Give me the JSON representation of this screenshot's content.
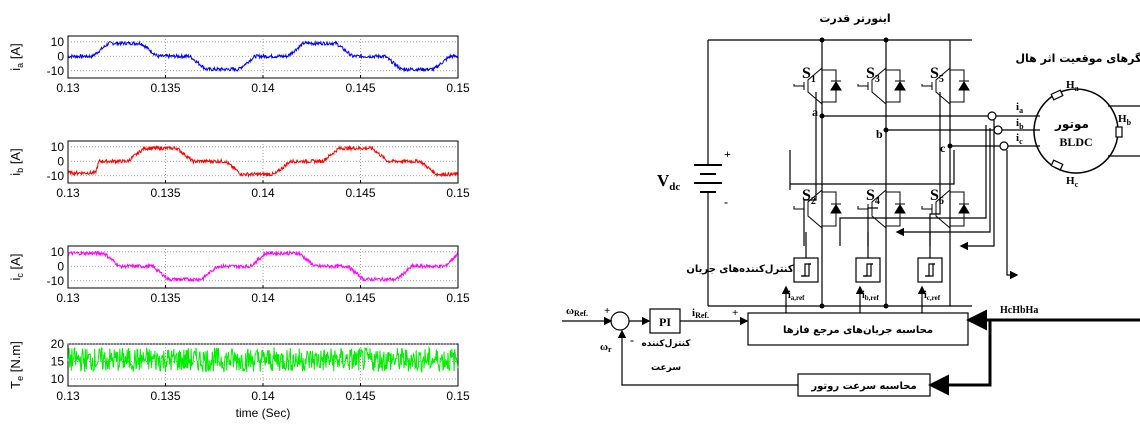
{
  "chart_data": [
    {
      "type": "line",
      "ylabel": "i_a [A]",
      "ylabel_main": "i",
      "ylabel_sub": "a",
      "ylabel_unit": " [A]",
      "color": "#0000ff",
      "xlim": [
        0.13,
        0.15
      ],
      "ylim": [
        -15,
        14
      ],
      "yticks": [
        -10,
        0,
        10
      ],
      "xticks": [
        "0.13",
        "0.135",
        "0.14",
        "0.145",
        "0.15"
      ],
      "grid": true,
      "x": [
        0.13,
        0.13125,
        0.13209,
        0.13375,
        0.13459,
        0.13625,
        0.13709,
        0.13875,
        0.13959,
        0.14125,
        0.14209,
        0.14375,
        0.14459,
        0.14625,
        0.14709,
        0.14875,
        0.14959,
        0.15
      ],
      "y": [
        0,
        0,
        9,
        9,
        0,
        0,
        -9,
        -9,
        0,
        0,
        9,
        9,
        0,
        0,
        -9,
        -9,
        0,
        0
      ],
      "noise": 1.2
    },
    {
      "type": "line",
      "ylabel": "i_b [A]",
      "ylabel_main": "i",
      "ylabel_sub": "b",
      "ylabel_unit": " [A]",
      "color": "#ff0000",
      "xlim": [
        0.13,
        0.15
      ],
      "ylim": [
        -15,
        14
      ],
      "yticks": [
        -10,
        0,
        10
      ],
      "xticks": [
        "0.13",
        "0.135",
        "0.14",
        "0.145",
        "0.15"
      ],
      "grid": true,
      "x": [
        0.13,
        0.1314,
        0.1316,
        0.13306,
        0.1339,
        0.1356,
        0.1364,
        0.13806,
        0.1389,
        0.1406,
        0.1414,
        0.14306,
        0.1439,
        0.1456,
        0.1464,
        0.14806,
        0.1489,
        0.15
      ],
      "y": [
        -8,
        -8,
        0,
        0,
        9,
        9,
        0,
        0,
        -9,
        -9,
        0,
        0,
        9,
        9,
        0,
        0,
        -9,
        -9
      ],
      "noise": 1.2
    },
    {
      "type": "line",
      "ylabel": "i_c [A]",
      "ylabel_main": "i",
      "ylabel_sub": "c",
      "ylabel_unit": " [A]",
      "color": "#ff00ff",
      "xlim": [
        0.13,
        0.15
      ],
      "ylim": [
        -15,
        14
      ],
      "yticks": [
        -10,
        0,
        10
      ],
      "xticks": [
        "0.13",
        "0.135",
        "0.14",
        "0.145",
        "0.15"
      ],
      "grid": true,
      "x": [
        0.13,
        0.13185,
        0.13265,
        0.13435,
        0.13515,
        0.13685,
        0.13765,
        0.13935,
        0.14015,
        0.14185,
        0.14265,
        0.14435,
        0.14515,
        0.14685,
        0.14765,
        0.14935,
        0.15
      ],
      "y": [
        9,
        9,
        0,
        0,
        -9,
        -9,
        0,
        0,
        9,
        9,
        0,
        0,
        -9,
        -9,
        0,
        0,
        9
      ],
      "noise": 1.2
    },
    {
      "type": "line",
      "ylabel": "T_e [N.m]",
      "ylabel_main": "T",
      "ylabel_sub": "e",
      "ylabel_unit": " [N.m]",
      "xlabel": "time (Sec)",
      "color": "#00ee00",
      "xlim": [
        0.13,
        0.15
      ],
      "ylim": [
        8,
        20
      ],
      "yticks": [
        10,
        15,
        20
      ],
      "xticks": [
        "0.13",
        "0.135",
        "0.14",
        "0.145",
        "0.15"
      ],
      "grid": true,
      "x": [
        0.13,
        0.15
      ],
      "y": [
        15.5,
        15.5
      ],
      "noise": 3.5
    }
  ],
  "diagram": {
    "inverter_title": "اینورتر قدرت",
    "hall_sensors_title": "حسگرهای موقعیت اثر هال",
    "vdc_main": "V",
    "vdc_sub": "dc",
    "plus": "+",
    "minus": "-",
    "switches": [
      {
        "main": "S",
        "sub": "1"
      },
      {
        "main": "S",
        "sub": "3"
      },
      {
        "main": "S",
        "sub": "5"
      },
      {
        "main": "S",
        "sub": "2"
      },
      {
        "main": "S",
        "sub": "4"
      },
      {
        "main": "S",
        "sub": "6"
      }
    ],
    "node_a": "a",
    "node_b": "b",
    "node_c": "c",
    "currents": [
      {
        "main": "i",
        "sub": "a"
      },
      {
        "main": "i",
        "sub": "b"
      },
      {
        "main": "i",
        "sub": "c"
      }
    ],
    "motor_fa": "موتور",
    "motor_en": "BLDC",
    "hall": [
      {
        "main": "H",
        "sub": "a"
      },
      {
        "main": "H",
        "sub": "b"
      },
      {
        "main": "H",
        "sub": "c"
      }
    ],
    "current_controllers_title": "کنترل‌کننده‌های جریان",
    "iref": [
      {
        "main": "i",
        "sub": "a,ref"
      },
      {
        "main": "i",
        "sub": "b,ref"
      },
      {
        "main": "i",
        "sub": "c,ref"
      }
    ],
    "omega_ref_main": "ω",
    "omega_ref_sub": "Ref.",
    "omega_r_main": "ω",
    "omega_r_sub": "r",
    "pi": "PI",
    "speed_controller_1": "کنترل‌کننده",
    "speed_controller_2": "سرعت",
    "iref_main": "i",
    "iref_sub": "Ref.",
    "ref_current_block": "محاسبه جریان‌های مرجع فازها",
    "hall_signals": "HcHbHa",
    "rotor_speed_block": "محاسبه سرعت روتور"
  }
}
